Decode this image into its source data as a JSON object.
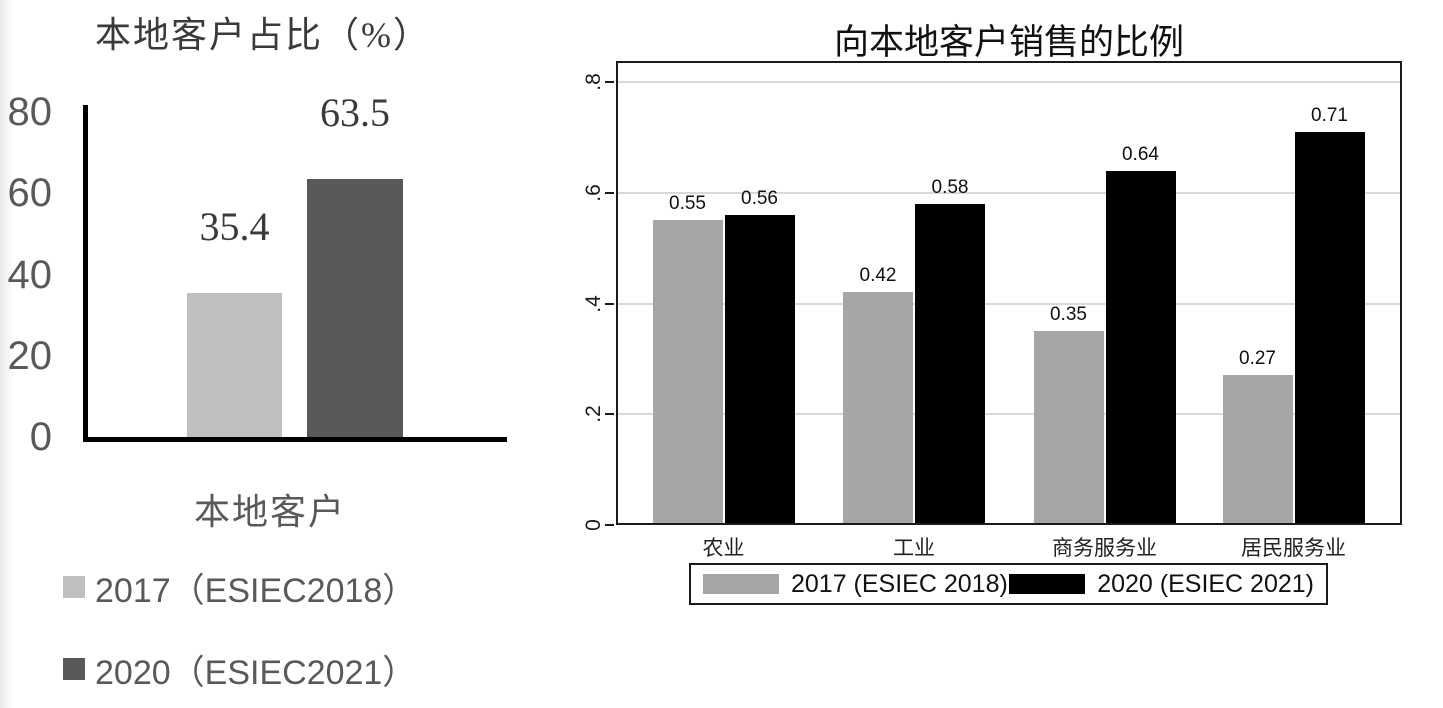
{
  "page": {
    "background": "#ffffff"
  },
  "chart_data": [
    {
      "type": "bar",
      "title": "本地客户占比（%）",
      "xlabel": "本地客户",
      "ylabel": "",
      "categories": [
        "本地客户"
      ],
      "series": [
        {
          "name": "2017（ESIEC2018）",
          "color": "#bfbfbf",
          "values": [
            35.4
          ]
        },
        {
          "name": "2020（ESIEC2021）",
          "color": "#595959",
          "values": [
            63.5
          ]
        }
      ],
      "data_label_decimals": 1,
      "ylim": [
        0,
        80
      ],
      "ytick_values": [
        0,
        20,
        40,
        60,
        80
      ],
      "ytick_labels": [
        "0",
        "20",
        "40",
        "60",
        "80"
      ],
      "grid": false,
      "legend_position": "bottom-left"
    },
    {
      "type": "bar",
      "title": "向本地客户销售的比例",
      "xlabel": "",
      "ylabel": "",
      "categories": [
        "农业",
        "工业",
        "商务服务业",
        "居民服务业"
      ],
      "series": [
        {
          "name": "2017 (ESIEC 2018)",
          "color": "#a6a6a6",
          "values": [
            0.55,
            0.42,
            0.35,
            0.27
          ]
        },
        {
          "name": "2020 (ESIEC 2021)",
          "color": "#000000",
          "values": [
            0.56,
            0.58,
            0.64,
            0.71
          ]
        }
      ],
      "data_label_decimals": 2,
      "ylim": [
        0,
        0.8
      ],
      "ytick_values": [
        0,
        0.2,
        0.4,
        0.6,
        0.8
      ],
      "ytick_labels": [
        "0",
        ".2",
        ".4",
        ".6",
        ".8"
      ],
      "grid": true,
      "legend_position": "bottom-box"
    }
  ]
}
